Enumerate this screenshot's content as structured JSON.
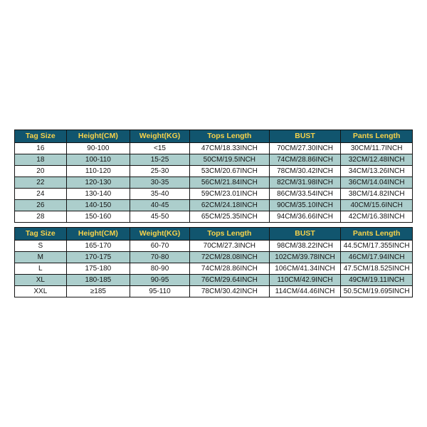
{
  "headerBg": "#11556e",
  "headerFg": "#f6d24a",
  "rowEvenBg": "#ffffff",
  "rowOddBg": "#accecc",
  "borderColor": "#141414",
  "tables": [
    {
      "columns": [
        "Tag Size",
        "Height(CM)",
        "Weight(KG)",
        "Tops Length",
        "BUST",
        "Pants Length"
      ],
      "rows": [
        [
          "16",
          "90-100",
          "<15",
          "47CM/18.33INCH",
          "70CM/27.30INCH",
          "30CM/11.7INCH"
        ],
        [
          "18",
          "100-110",
          "15-25",
          "50CM/19.5INCH",
          "74CM/28.86INCH",
          "32CM/12.48INCH"
        ],
        [
          "20",
          "110-120",
          "25-30",
          "53CM/20.67INCH",
          "78CM/30.42INCH",
          "34CM/13.26INCH"
        ],
        [
          "22",
          "120-130",
          "30-35",
          "56CM/21.84INCH",
          "82CM/31.98INCH",
          "36CM/14.04INCH"
        ],
        [
          "24",
          "130-140",
          "35-40",
          "59CM/23.01INCH",
          "86CM/33.54INCH",
          "38CM/14.82INCH"
        ],
        [
          "26",
          "140-150",
          "40-45",
          "62CM/24.18INCH",
          "90CM/35.10INCH",
          "40CM/15.6INCH"
        ],
        [
          "28",
          "150-160",
          "45-50",
          "65CM/25.35INCH",
          "94CM/36.66INCH",
          "42CM/16.38INCH"
        ]
      ]
    },
    {
      "columns": [
        "Tag Size",
        "Height(CM)",
        "Weight(KG)",
        "Tops Length",
        "BUST",
        "Pants Length"
      ],
      "rows": [
        [
          "S",
          "165-170",
          "60-70",
          "70CM/27.3INCH",
          "98CM/38.22INCH",
          "44.5CM/17.355INCH"
        ],
        [
          "M",
          "170-175",
          "70-80",
          "72CM/28.08INCH",
          "102CM/39.78INCH",
          "46CM/17.94INCH"
        ],
        [
          "L",
          "175-180",
          "80-90",
          "74CM/28.86INCH",
          "106CM/41.34INCH",
          "47.5CM/18.525INCH"
        ],
        [
          "XL",
          "180-185",
          "90-95",
          "76CM/29.64INCH",
          "110CM/42.9INCH",
          "49CM/19.11INCH"
        ],
        [
          "XXL",
          "≥185",
          "95-110",
          "78CM/30.42INCH",
          "114CM/44.46INCH",
          "50.5CM/19.695INCH"
        ]
      ]
    }
  ]
}
